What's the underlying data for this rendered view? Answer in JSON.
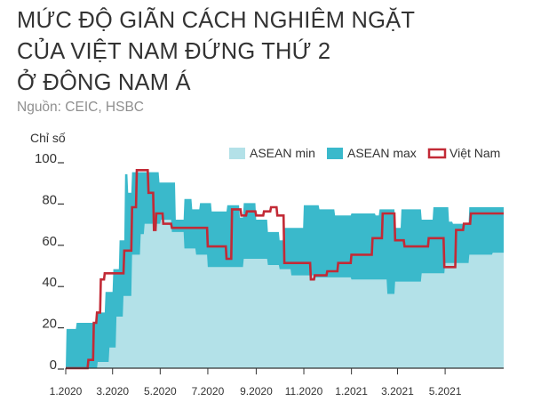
{
  "title_lines": [
    "MỨC ĐỘ GIÃN CÁCH NGHIÊM NGẶT",
    "CỦA VIỆT NAM ĐỨNG THỨ 2",
    "Ở ĐÔNG NAM Á"
  ],
  "source": "Nguồn: CEIC, HSBC",
  "colors": {
    "asean_min": "#b3e1e8",
    "asean_max": "#3ab9cb",
    "vietnam": "#c22a36",
    "text": "#333333"
  },
  "chart_data": {
    "type": "area",
    "title": "MỨC ĐỘ GIÃN CÁCH NGHIÊM NGẶT CỦA VIỆT NAM ĐỨNG THỨ 2 Ở ĐÔNG NAM Á",
    "ylabel": "Chỉ số",
    "xlabel": "",
    "ylim": [
      0,
      100
    ],
    "yticks": [
      0,
      20,
      40,
      60,
      80,
      100
    ],
    "x_range": [
      "2020-01-01",
      "2021-07-15"
    ],
    "xticks": [
      {
        "date": "2020-01-01",
        "label": "1.2020"
      },
      {
        "date": "2020-03-01",
        "label": "3.2020"
      },
      {
        "date": "2020-05-01",
        "label": "5.2020"
      },
      {
        "date": "2020-07-01",
        "label": "7.2020"
      },
      {
        "date": "2020-09-01",
        "label": "9.2020"
      },
      {
        "date": "2020-11-01",
        "label": "11.2020"
      },
      {
        "date": "2021-01-01",
        "label": "1.2021"
      },
      {
        "date": "2021-03-01",
        "label": "3.2021"
      },
      {
        "date": "2021-05-01",
        "label": "5.2021"
      }
    ],
    "legend": {
      "position": "top-right"
    },
    "grid": false,
    "series": [
      {
        "name": "ASEAN min",
        "style": "area",
        "points": [
          [
            "2020-01-01",
            0
          ],
          [
            "2020-02-10",
            0
          ],
          [
            "2020-02-11",
            3
          ],
          [
            "2020-02-25",
            3
          ],
          [
            "2020-02-26",
            10
          ],
          [
            "2020-03-05",
            10
          ],
          [
            "2020-03-06",
            25
          ],
          [
            "2020-03-14",
            25
          ],
          [
            "2020-03-15",
            35
          ],
          [
            "2020-03-25",
            35
          ],
          [
            "2020-03-26",
            55
          ],
          [
            "2020-04-05",
            55
          ],
          [
            "2020-04-06",
            65
          ],
          [
            "2020-04-10",
            65
          ],
          [
            "2020-04-11",
            70
          ],
          [
            "2020-05-01",
            70
          ],
          [
            "2020-05-02",
            72
          ],
          [
            "2020-05-15",
            72
          ],
          [
            "2020-05-16",
            66
          ],
          [
            "2020-05-31",
            66
          ],
          [
            "2020-06-01",
            58
          ],
          [
            "2020-06-15",
            58
          ],
          [
            "2020-06-16",
            55
          ],
          [
            "2020-06-30",
            55
          ],
          [
            "2020-07-01",
            49
          ],
          [
            "2020-08-15",
            49
          ],
          [
            "2020-08-16",
            53
          ],
          [
            "2020-09-15",
            53
          ],
          [
            "2020-09-16",
            50
          ],
          [
            "2020-09-30",
            50
          ],
          [
            "2020-10-01",
            48
          ],
          [
            "2020-10-15",
            48
          ],
          [
            "2020-10-16",
            45
          ],
          [
            "2020-11-15",
            45
          ],
          [
            "2020-11-16",
            44
          ],
          [
            "2020-12-31",
            44
          ],
          [
            "2021-01-01",
            43
          ],
          [
            "2021-02-15",
            43
          ],
          [
            "2021-02-16",
            36
          ],
          [
            "2021-02-25",
            36
          ],
          [
            "2021-02-26",
            42
          ],
          [
            "2021-03-31",
            42
          ],
          [
            "2021-04-01",
            46
          ],
          [
            "2021-04-30",
            46
          ],
          [
            "2021-05-01",
            51
          ],
          [
            "2021-05-31",
            51
          ],
          [
            "2021-06-01",
            55
          ],
          [
            "2021-06-30",
            55
          ],
          [
            "2021-07-01",
            56
          ],
          [
            "2021-07-15",
            56
          ]
        ]
      },
      {
        "name": "ASEAN max",
        "style": "area",
        "points": [
          [
            "2020-01-01",
            0
          ],
          [
            "2020-01-02",
            19
          ],
          [
            "2020-01-14",
            19
          ],
          [
            "2020-01-15",
            22
          ],
          [
            "2020-02-10",
            22
          ],
          [
            "2020-02-11",
            27
          ],
          [
            "2020-02-20",
            27
          ],
          [
            "2020-02-21",
            37
          ],
          [
            "2020-03-01",
            37
          ],
          [
            "2020-03-02",
            48
          ],
          [
            "2020-03-09",
            48
          ],
          [
            "2020-03-10",
            62
          ],
          [
            "2020-03-16",
            62
          ],
          [
            "2020-03-17",
            94
          ],
          [
            "2020-03-20",
            94
          ],
          [
            "2020-03-21",
            85
          ],
          [
            "2020-03-25",
            85
          ],
          [
            "2020-03-26",
            95
          ],
          [
            "2020-04-29",
            95
          ],
          [
            "2020-04-30",
            90
          ],
          [
            "2020-05-20",
            90
          ],
          [
            "2020-05-21",
            72
          ],
          [
            "2020-05-31",
            72
          ],
          [
            "2020-06-01",
            82
          ],
          [
            "2020-06-10",
            82
          ],
          [
            "2020-06-11",
            77
          ],
          [
            "2020-06-20",
            77
          ],
          [
            "2020-06-21",
            80
          ],
          [
            "2020-07-05",
            80
          ],
          [
            "2020-07-06",
            76
          ],
          [
            "2020-07-25",
            76
          ],
          [
            "2020-07-26",
            79
          ],
          [
            "2020-08-10",
            79
          ],
          [
            "2020-08-11",
            73
          ],
          [
            "2020-08-15",
            73
          ],
          [
            "2020-08-16",
            80
          ],
          [
            "2020-08-31",
            80
          ],
          [
            "2020-09-01",
            72
          ],
          [
            "2020-09-15",
            72
          ],
          [
            "2020-09-16",
            66
          ],
          [
            "2020-09-30",
            66
          ],
          [
            "2020-10-01",
            62
          ],
          [
            "2020-10-05",
            62
          ],
          [
            "2020-10-06",
            68
          ],
          [
            "2020-10-31",
            68
          ],
          [
            "2020-11-01",
            79
          ],
          [
            "2020-11-20",
            79
          ],
          [
            "2020-11-21",
            77
          ],
          [
            "2020-12-10",
            77
          ],
          [
            "2020-12-11",
            74
          ],
          [
            "2020-12-31",
            74
          ],
          [
            "2021-01-01",
            75
          ],
          [
            "2021-01-31",
            75
          ],
          [
            "2021-02-01",
            74
          ],
          [
            "2021-02-05",
            74
          ],
          [
            "2021-02-06",
            77
          ],
          [
            "2021-02-25",
            77
          ],
          [
            "2021-02-26",
            68
          ],
          [
            "2021-03-05",
            68
          ],
          [
            "2021-03-06",
            77
          ],
          [
            "2021-03-31",
            77
          ],
          [
            "2021-04-01",
            72
          ],
          [
            "2021-04-15",
            72
          ],
          [
            "2021-04-16",
            78
          ],
          [
            "2021-05-05",
            78
          ],
          [
            "2021-05-06",
            71
          ],
          [
            "2021-05-10",
            71
          ],
          [
            "2021-05-11",
            70
          ],
          [
            "2021-05-31",
            70
          ],
          [
            "2021-06-01",
            78
          ],
          [
            "2021-07-15",
            78
          ]
        ]
      },
      {
        "name": "Việt Nam",
        "style": "line",
        "points": [
          [
            "2020-01-01",
            0
          ],
          [
            "2020-01-29",
            0
          ],
          [
            "2020-01-30",
            4
          ],
          [
            "2020-02-05",
            4
          ],
          [
            "2020-02-06",
            22
          ],
          [
            "2020-02-09",
            22
          ],
          [
            "2020-02-10",
            27
          ],
          [
            "2020-02-14",
            27
          ],
          [
            "2020-02-15",
            43
          ],
          [
            "2020-02-19",
            43
          ],
          [
            "2020-02-20",
            46
          ],
          [
            "2020-03-15",
            46
          ],
          [
            "2020-03-16",
            57
          ],
          [
            "2020-03-25",
            57
          ],
          [
            "2020-03-26",
            78
          ],
          [
            "2020-03-31",
            78
          ],
          [
            "2020-04-01",
            96
          ],
          [
            "2020-04-15",
            96
          ],
          [
            "2020-04-16",
            85
          ],
          [
            "2020-04-22",
            85
          ],
          [
            "2020-04-23",
            67
          ],
          [
            "2020-04-25",
            67
          ],
          [
            "2020-04-26",
            75
          ],
          [
            "2020-05-04",
            75
          ],
          [
            "2020-05-05",
            70
          ],
          [
            "2020-05-15",
            70
          ],
          [
            "2020-05-16",
            68
          ],
          [
            "2020-06-30",
            68
          ],
          [
            "2020-07-01",
            59
          ],
          [
            "2020-07-24",
            59
          ],
          [
            "2020-07-25",
            53
          ],
          [
            "2020-07-31",
            53
          ],
          [
            "2020-08-01",
            77
          ],
          [
            "2020-08-12",
            77
          ],
          [
            "2020-08-13",
            74
          ],
          [
            "2020-08-19",
            74
          ],
          [
            "2020-08-20",
            76
          ],
          [
            "2020-08-31",
            76
          ],
          [
            "2020-09-01",
            74
          ],
          [
            "2020-09-10",
            74
          ],
          [
            "2020-09-11",
            76
          ],
          [
            "2020-09-19",
            76
          ],
          [
            "2020-09-20",
            78
          ],
          [
            "2020-09-27",
            78
          ],
          [
            "2020-09-28",
            74
          ],
          [
            "2020-10-06",
            74
          ],
          [
            "2020-10-07",
            51
          ],
          [
            "2020-11-09",
            51
          ],
          [
            "2020-11-10",
            43
          ],
          [
            "2020-11-14",
            43
          ],
          [
            "2020-11-15",
            45
          ],
          [
            "2020-11-30",
            45
          ],
          [
            "2020-12-01",
            47
          ],
          [
            "2020-12-14",
            47
          ],
          [
            "2020-12-15",
            51
          ],
          [
            "2020-12-31",
            51
          ],
          [
            "2021-01-01",
            55
          ],
          [
            "2021-01-27",
            55
          ],
          [
            "2021-01-28",
            63
          ],
          [
            "2021-02-09",
            63
          ],
          [
            "2021-02-10",
            75
          ],
          [
            "2021-02-25",
            75
          ],
          [
            "2021-02-26",
            62
          ],
          [
            "2021-03-09",
            62
          ],
          [
            "2021-03-10",
            59
          ],
          [
            "2021-04-09",
            59
          ],
          [
            "2021-04-10",
            63
          ],
          [
            "2021-04-29",
            63
          ],
          [
            "2021-04-30",
            49
          ],
          [
            "2021-05-14",
            49
          ],
          [
            "2021-05-15",
            67
          ],
          [
            "2021-05-24",
            67
          ],
          [
            "2021-05-25",
            70
          ],
          [
            "2021-06-02",
            70
          ],
          [
            "2021-06-03",
            75
          ],
          [
            "2021-07-15",
            75
          ]
        ]
      }
    ]
  }
}
